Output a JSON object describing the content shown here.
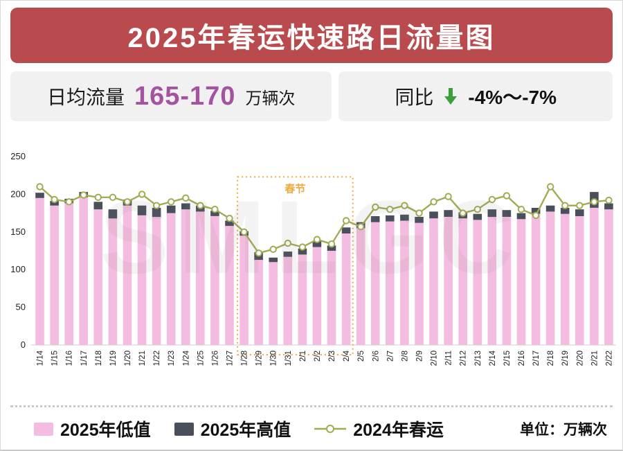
{
  "header": {
    "title": "2025年春运快速路日流量图"
  },
  "stats": {
    "daily_flow": {
      "label": "日均流量",
      "value": "165-170",
      "unit": "万辆次"
    },
    "yoy": {
      "label": "同比",
      "value": "-4%～-7%"
    }
  },
  "watermark": "SMLGC",
  "colors": {
    "title-bg": "#b94a4d",
    "purple": "#a3539f",
    "green": "#3d9e3d",
    "orange": "#efa93a",
    "pink": "#f4bce0",
    "dark": "#4a505b",
    "olive": "#a2aa52"
  },
  "legend": {
    "unit_label": "单位：万辆次"
  },
  "chart_data": {
    "type": "bar",
    "title": "2025年春运快速路日流量图",
    "xlabel": "",
    "ylabel": "",
    "unit": "万辆次",
    "ylim": [
      0,
      250
    ],
    "yticks": [
      0,
      50,
      100,
      150,
      200,
      250
    ],
    "grid": false,
    "legend_position": "bottom",
    "categories": [
      "1/14",
      "1/15",
      "1/16",
      "1/17",
      "1/18",
      "1/19",
      "1/20",
      "1/21",
      "1/22",
      "1/23",
      "1/24",
      "1/25",
      "1/26",
      "1/27",
      "1/28",
      "1/29",
      "1/30",
      "1/31",
      "2/1",
      "2/2",
      "2/3",
      "2/4",
      "2/5",
      "2/6",
      "2/7",
      "2/8",
      "2/9",
      "2/10",
      "2/11",
      "2/12",
      "2/13",
      "2/14",
      "2/15",
      "2/16",
      "2/17",
      "2/18",
      "2/19",
      "2/20",
      "2/21",
      "2/22"
    ],
    "series": [
      {
        "name": "2025年低值",
        "type": "bar",
        "color": "#f4bce0",
        "values": [
          195,
          185,
          188,
          196,
          180,
          168,
          185,
          172,
          170,
          175,
          180,
          177,
          171,
          158,
          145,
          113,
          110,
          117,
          120,
          130,
          125,
          148,
          155,
          163,
          164,
          165,
          162,
          168,
          170,
          168,
          166,
          170,
          170,
          167,
          174,
          177,
          174,
          171,
          182,
          180
        ]
      },
      {
        "name": "2025年高值",
        "type": "bar-cap",
        "color": "#4a505b",
        "values": [
          202,
          191,
          194,
          203,
          190,
          180,
          193,
          185,
          182,
          185,
          188,
          185,
          178,
          165,
          151,
          123,
          116,
          124,
          128,
          138,
          132,
          156,
          163,
          171,
          172,
          173,
          170,
          177,
          179,
          176,
          174,
          180,
          179,
          175,
          182,
          185,
          182,
          180,
          203,
          188
        ]
      },
      {
        "name": "2024年春运",
        "type": "line",
        "color": "#a2aa52",
        "values": [
          210,
          193,
          190,
          199,
          196,
          196,
          190,
          200,
          185,
          190,
          195,
          185,
          180,
          168,
          150,
          122,
          127,
          135,
          130,
          140,
          134,
          165,
          157,
          183,
          180,
          185,
          175,
          190,
          197,
          175,
          180,
          193,
          198,
          180,
          172,
          210,
          185,
          185,
          190,
          192
        ]
      }
    ],
    "annotation": {
      "label": "春节",
      "from": "1/28",
      "to": "2/4",
      "color": "#efa93a"
    }
  }
}
